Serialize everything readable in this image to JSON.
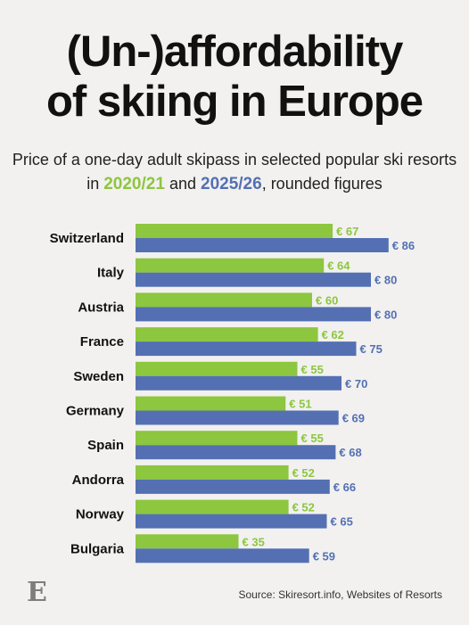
{
  "title_line1": "(Un-)affordability",
  "title_line2": "of skiing in Europe",
  "subtitle_line1": "Price of a one-day adult skipass in selected popular ski resorts",
  "subtitle_in": "in",
  "subtitle_year1": "2020/21",
  "subtitle_and": "and",
  "subtitle_year2": "2025/26",
  "subtitle_tail": ", rounded figures",
  "logo_letter": "E",
  "source": "Source: Skiresort.info, Websites of Resorts",
  "colors": {
    "series_2020": "#8dc63f",
    "series_2025": "#5470b3",
    "background": "#f2f1ef"
  },
  "chart_data": {
    "type": "bar",
    "orientation": "horizontal",
    "categories": [
      "Switzerland",
      "Italy",
      "Austria",
      "France",
      "Sweden",
      "Germany",
      "Spain",
      "Andorra",
      "Norway",
      "Bulgaria"
    ],
    "series": [
      {
        "name": "2020/21",
        "values": [
          67,
          64,
          60,
          62,
          55,
          51,
          55,
          52,
          52,
          35
        ],
        "labels": [
          "€ 67",
          "€ 64",
          "€ 60",
          "€ 62",
          "€ 55",
          "€ 51",
          "€ 55",
          "€ 52",
          "€ 52",
          "€ 35"
        ]
      },
      {
        "name": "2025/26",
        "values": [
          86,
          80,
          80,
          75,
          70,
          69,
          68,
          66,
          65,
          59
        ],
        "labels": [
          "€ 86",
          "€ 80",
          "€ 80",
          "€ 75",
          "€ 70",
          "€ 69",
          "€ 68",
          "€ 66",
          "€ 65",
          "€ 59"
        ]
      }
    ],
    "xlim": [
      0,
      86
    ],
    "grid": false,
    "legend": "in subtitle"
  }
}
